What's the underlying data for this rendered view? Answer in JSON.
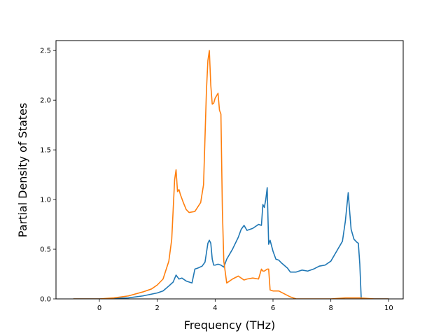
{
  "chart_data": {
    "type": "line",
    "title": "",
    "xlabel": "Frequency (THz)",
    "ylabel": "Partial Density of States",
    "xlim": [
      -1.5,
      10.5
    ],
    "ylim": [
      0,
      2.6
    ],
    "x_ticks": [
      0,
      2,
      4,
      6,
      8,
      10
    ],
    "y_ticks": [
      0.0,
      0.5,
      1.0,
      1.5,
      2.0,
      2.5
    ],
    "x_tick_labels": [
      "0",
      "2",
      "4",
      "6",
      "8",
      "10"
    ],
    "y_tick_labels": [
      "0.0",
      "0.5",
      "1.0",
      "1.5",
      "2.0",
      "2.5"
    ],
    "grid": false,
    "legend": "none",
    "series": [
      {
        "color": "#1f77b4",
        "x": [
          -0.9,
          0.0,
          0.5,
          1.0,
          1.5,
          2.0,
          2.2,
          2.4,
          2.55,
          2.65,
          2.75,
          2.85,
          3.0,
          3.1,
          3.2,
          3.3,
          3.4,
          3.55,
          3.65,
          3.75,
          3.8,
          3.85,
          3.9,
          3.95,
          4.0,
          4.1,
          4.2,
          4.3,
          4.4,
          4.6,
          4.8,
          4.9,
          5.0,
          5.1,
          5.3,
          5.5,
          5.6,
          5.65,
          5.7,
          5.75,
          5.8,
          5.85,
          5.9,
          6.0,
          6.1,
          6.2,
          6.3,
          6.5,
          6.6,
          6.8,
          7.0,
          7.2,
          7.4,
          7.6,
          7.8,
          8.0,
          8.2,
          8.4,
          8.5,
          8.6,
          8.65,
          8.7,
          8.8,
          8.9,
          8.95,
          9.0,
          9.05,
          9.1,
          10.0
        ],
        "y": [
          0.0,
          0.0,
          0.005,
          0.01,
          0.03,
          0.06,
          0.08,
          0.13,
          0.17,
          0.24,
          0.2,
          0.21,
          0.18,
          0.17,
          0.16,
          0.3,
          0.31,
          0.33,
          0.37,
          0.56,
          0.59,
          0.56,
          0.4,
          0.34,
          0.34,
          0.35,
          0.34,
          0.32,
          0.4,
          0.5,
          0.62,
          0.7,
          0.74,
          0.69,
          0.71,
          0.75,
          0.74,
          0.95,
          0.92,
          1.0,
          1.12,
          0.55,
          0.59,
          0.48,
          0.4,
          0.39,
          0.36,
          0.31,
          0.27,
          0.27,
          0.29,
          0.28,
          0.3,
          0.33,
          0.34,
          0.38,
          0.48,
          0.58,
          0.78,
          1.07,
          0.88,
          0.7,
          0.6,
          0.57,
          0.56,
          0.35,
          0.0,
          0.0,
          0.0
        ]
      },
      {
        "color": "#ff7f0e",
        "x": [
          -0.9,
          0.0,
          0.5,
          1.0,
          1.5,
          1.8,
          2.0,
          2.2,
          2.4,
          2.5,
          2.6,
          2.65,
          2.7,
          2.75,
          2.8,
          2.9,
          3.0,
          3.1,
          3.3,
          3.5,
          3.6,
          3.7,
          3.75,
          3.8,
          3.85,
          3.9,
          3.95,
          4.0,
          4.1,
          4.15,
          4.2,
          4.25,
          4.3,
          4.4,
          4.6,
          4.8,
          5.0,
          5.1,
          5.3,
          5.5,
          5.6,
          5.65,
          5.7,
          5.8,
          5.85,
          5.9,
          6.0,
          6.2,
          6.4,
          6.6,
          6.8,
          7.0,
          8.0,
          8.5,
          8.6,
          8.8,
          9.0,
          9.5,
          10.0
        ],
        "y": [
          0.0,
          0.0,
          0.01,
          0.03,
          0.07,
          0.1,
          0.14,
          0.2,
          0.38,
          0.6,
          1.2,
          1.3,
          1.08,
          1.1,
          1.05,
          0.97,
          0.9,
          0.87,
          0.88,
          0.97,
          1.15,
          2.1,
          2.4,
          2.5,
          2.15,
          1.96,
          1.97,
          2.02,
          2.07,
          1.9,
          1.86,
          0.9,
          0.38,
          0.16,
          0.2,
          0.23,
          0.19,
          0.2,
          0.21,
          0.2,
          0.3,
          0.28,
          0.28,
          0.3,
          0.3,
          0.09,
          0.08,
          0.08,
          0.05,
          0.02,
          0.0,
          0.0,
          0.0,
          0.01,
          0.01,
          0.01,
          0.01,
          0.0,
          0.0
        ]
      }
    ]
  }
}
